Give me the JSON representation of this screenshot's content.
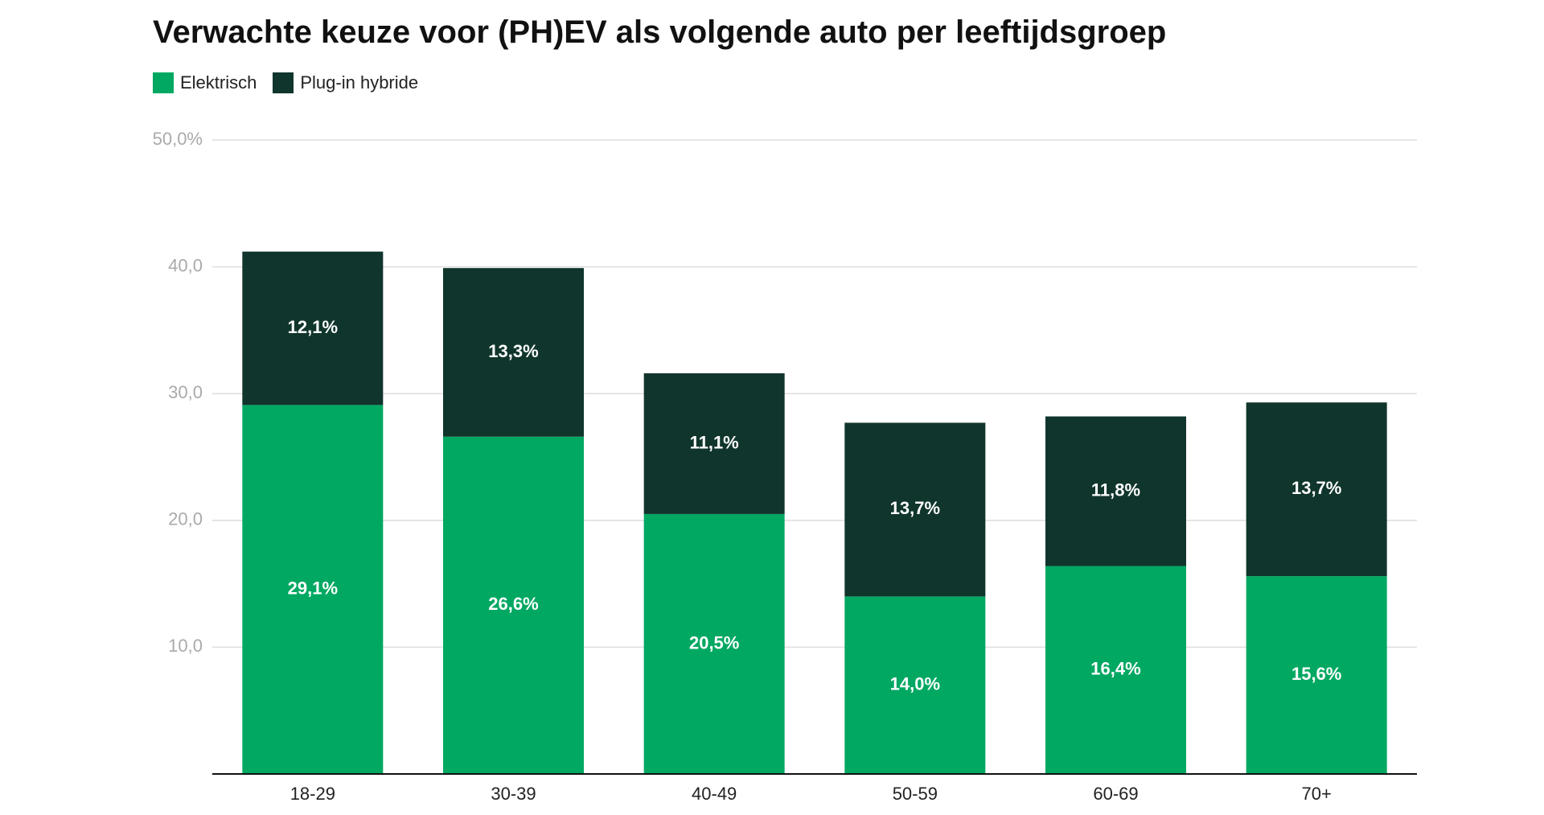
{
  "chart_data": {
    "type": "bar",
    "stacked": true,
    "title": "Verwachte keuze voor (PH)EV als volgende auto per leeftijdsgroep",
    "xlabel": "",
    "ylabel": "",
    "categories": [
      "18-29",
      "30-39",
      "40-49",
      "50-59",
      "60-69",
      "70+"
    ],
    "series": [
      {
        "name": "Elektrisch",
        "color": "#00a862",
        "values": [
          29.1,
          26.6,
          20.5,
          14.0,
          16.4,
          15.6
        ],
        "labels": [
          "29,1%",
          "26,6%",
          "20,5%",
          "14,0%",
          "16,4%",
          "15,6%"
        ]
      },
      {
        "name": "Plug-in hybride",
        "color": "#10352c",
        "values": [
          12.1,
          13.3,
          11.1,
          13.7,
          11.8,
          13.7
        ],
        "labels": [
          "12,1%",
          "13,3%",
          "11,1%",
          "13,7%",
          "11,8%",
          "13,7%"
        ]
      }
    ],
    "ylim": [
      0,
      50
    ],
    "yticks": [
      {
        "value": 10,
        "label": "10,0"
      },
      {
        "value": 20,
        "label": "20,0"
      },
      {
        "value": 30,
        "label": "30,0"
      },
      {
        "value": 40,
        "label": "40,0"
      },
      {
        "value": 50,
        "label": "50,0%"
      }
    ],
    "grid": true,
    "legend_position": "top-left"
  }
}
